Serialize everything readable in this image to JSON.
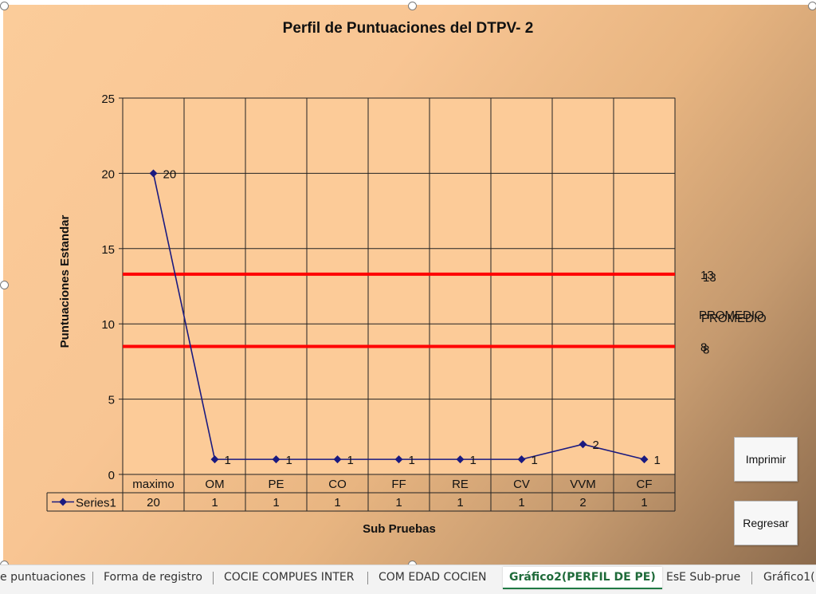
{
  "chart_data": {
    "type": "line",
    "title": "Perfil de Puntuaciones del DTPV- 2",
    "xlabel": "Sub Pruebas",
    "ylabel": "Puntuaciones Estandar",
    "ylim": [
      0,
      25
    ],
    "y_ticks": [
      0,
      5,
      10,
      15,
      20,
      25
    ],
    "categories": [
      "maximo",
      "OM",
      "PE",
      "CO",
      "FF",
      "RE",
      "CV",
      "VVM",
      "CF"
    ],
    "series": [
      {
        "name": "Series1",
        "values": [
          20,
          1,
          1,
          1,
          1,
          1,
          1,
          2,
          1
        ],
        "color": "#1a1a80"
      }
    ],
    "reference_lines": [
      {
        "value": 13.3,
        "label_a": "13",
        "label_b": "13",
        "color": "#ff0000"
      },
      {
        "value": 8.5,
        "label_a": "8",
        "label_b": "8",
        "color": "#ff0000"
      }
    ],
    "reference_label": "PROMEDIO",
    "grid": true,
    "data_table": true,
    "data_labels": true
  },
  "buttons": {
    "print_label": "Imprimir",
    "back_label": "Regresar"
  },
  "tabs": [
    {
      "label": "e puntuaciones",
      "active": false
    },
    {
      "label": "Forma de registro",
      "active": false
    },
    {
      "label": "COCIE COMPUES INTER",
      "active": false
    },
    {
      "label": "COM EDAD COCIEN",
      "active": false
    },
    {
      "label": "Gráfico2(PERFIL DE PE)",
      "active": true
    },
    {
      "label": "EsE Sub-prue",
      "active": false
    },
    {
      "label": "Gráfico1(I",
      "active": false
    }
  ],
  "colors": {
    "accent_active_tab": "#1f7a44",
    "reference_line": "#ff0000",
    "series": "#1a1a80"
  }
}
